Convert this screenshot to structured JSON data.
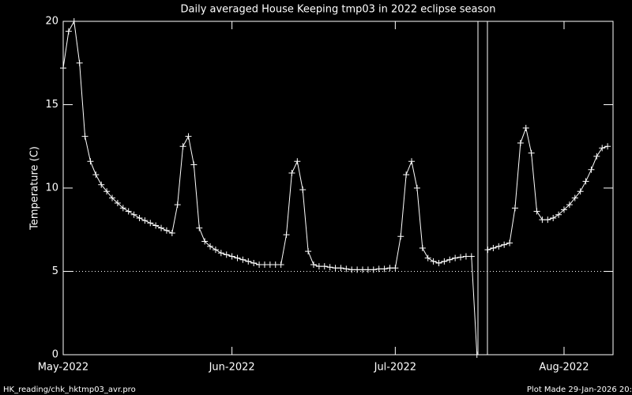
{
  "chart_data": {
    "type": "line",
    "title": "Daily averaged House Keeping tmp03 in 2022 eclipse season",
    "y_label": "Temperature (C)",
    "footer_left": "HK_reading/chk_hktmp03_avr.pro",
    "footer_right": "Plot Made 29-Jan-2026 20:",
    "color": "#ffffff",
    "marker": "plus",
    "reference_line": 5,
    "x": [
      0,
      1,
      2,
      3,
      4,
      5,
      6,
      7,
      8,
      9,
      10,
      11,
      12,
      13,
      14,
      15,
      16,
      17,
      18,
      19,
      20,
      21,
      22,
      23,
      24,
      25,
      26,
      27,
      28,
      29,
      30,
      31,
      32,
      33,
      34,
      35,
      36,
      37,
      38,
      39,
      40,
      41,
      42,
      43,
      44,
      45,
      46,
      47,
      48,
      49,
      50,
      51,
      52,
      53,
      54,
      55,
      56,
      57,
      58,
      59,
      60,
      61,
      62,
      63,
      64,
      65,
      66,
      67,
      68,
      69,
      70,
      71,
      72,
      73,
      74,
      75,
      76,
      77,
      78,
      79,
      80,
      81,
      82,
      83,
      84,
      85,
      86,
      87,
      88,
      89,
      90,
      91,
      92,
      93,
      94,
      95,
      96,
      97,
      98,
      99,
      100
    ],
    "values": [
      17.2,
      19.4,
      20.0,
      17.5,
      13.1,
      11.6,
      10.8,
      10.2,
      9.8,
      9.4,
      9.1,
      8.8,
      8.6,
      8.4,
      8.2,
      8.05,
      7.9,
      7.75,
      7.6,
      7.45,
      7.3,
      9.0,
      12.5,
      13.1,
      11.4,
      7.6,
      6.8,
      6.5,
      6.3,
      6.1,
      6.0,
      5.9,
      5.8,
      5.7,
      5.6,
      5.5,
      5.4,
      5.4,
      5.4,
      5.4,
      5.4,
      7.2,
      10.9,
      11.6,
      9.9,
      6.2,
      5.4,
      5.3,
      5.3,
      5.25,
      5.2,
      5.2,
      5.15,
      5.1,
      5.1,
      5.1,
      5.1,
      5.1,
      5.15,
      5.15,
      5.2,
      5.2,
      7.1,
      10.8,
      11.6,
      10.0,
      6.4,
      5.8,
      5.6,
      5.5,
      5.6,
      5.7,
      5.8,
      5.85,
      5.9,
      5.9,
      0,
      null,
      6.3,
      6.4,
      6.5,
      6.6,
      6.7,
      8.8,
      12.7,
      13.6,
      12.1,
      8.6,
      8.1,
      8.1,
      8.2,
      8.4,
      8.7,
      9.0,
      9.4,
      9.8,
      10.4,
      11.1,
      11.9,
      12.4,
      12.5
    ],
    "xlim": [
      0,
      101
    ],
    "xticks": [
      {
        "value": 0,
        "label": "May-2022"
      },
      {
        "value": 31,
        "label": "Jun-2022"
      },
      {
        "value": 61,
        "label": "Jul-2022"
      },
      {
        "value": 92,
        "label": "Aug-2022"
      }
    ],
    "ylim": [
      0,
      20
    ],
    "yticks": [
      0,
      5,
      10,
      15,
      20
    ]
  }
}
